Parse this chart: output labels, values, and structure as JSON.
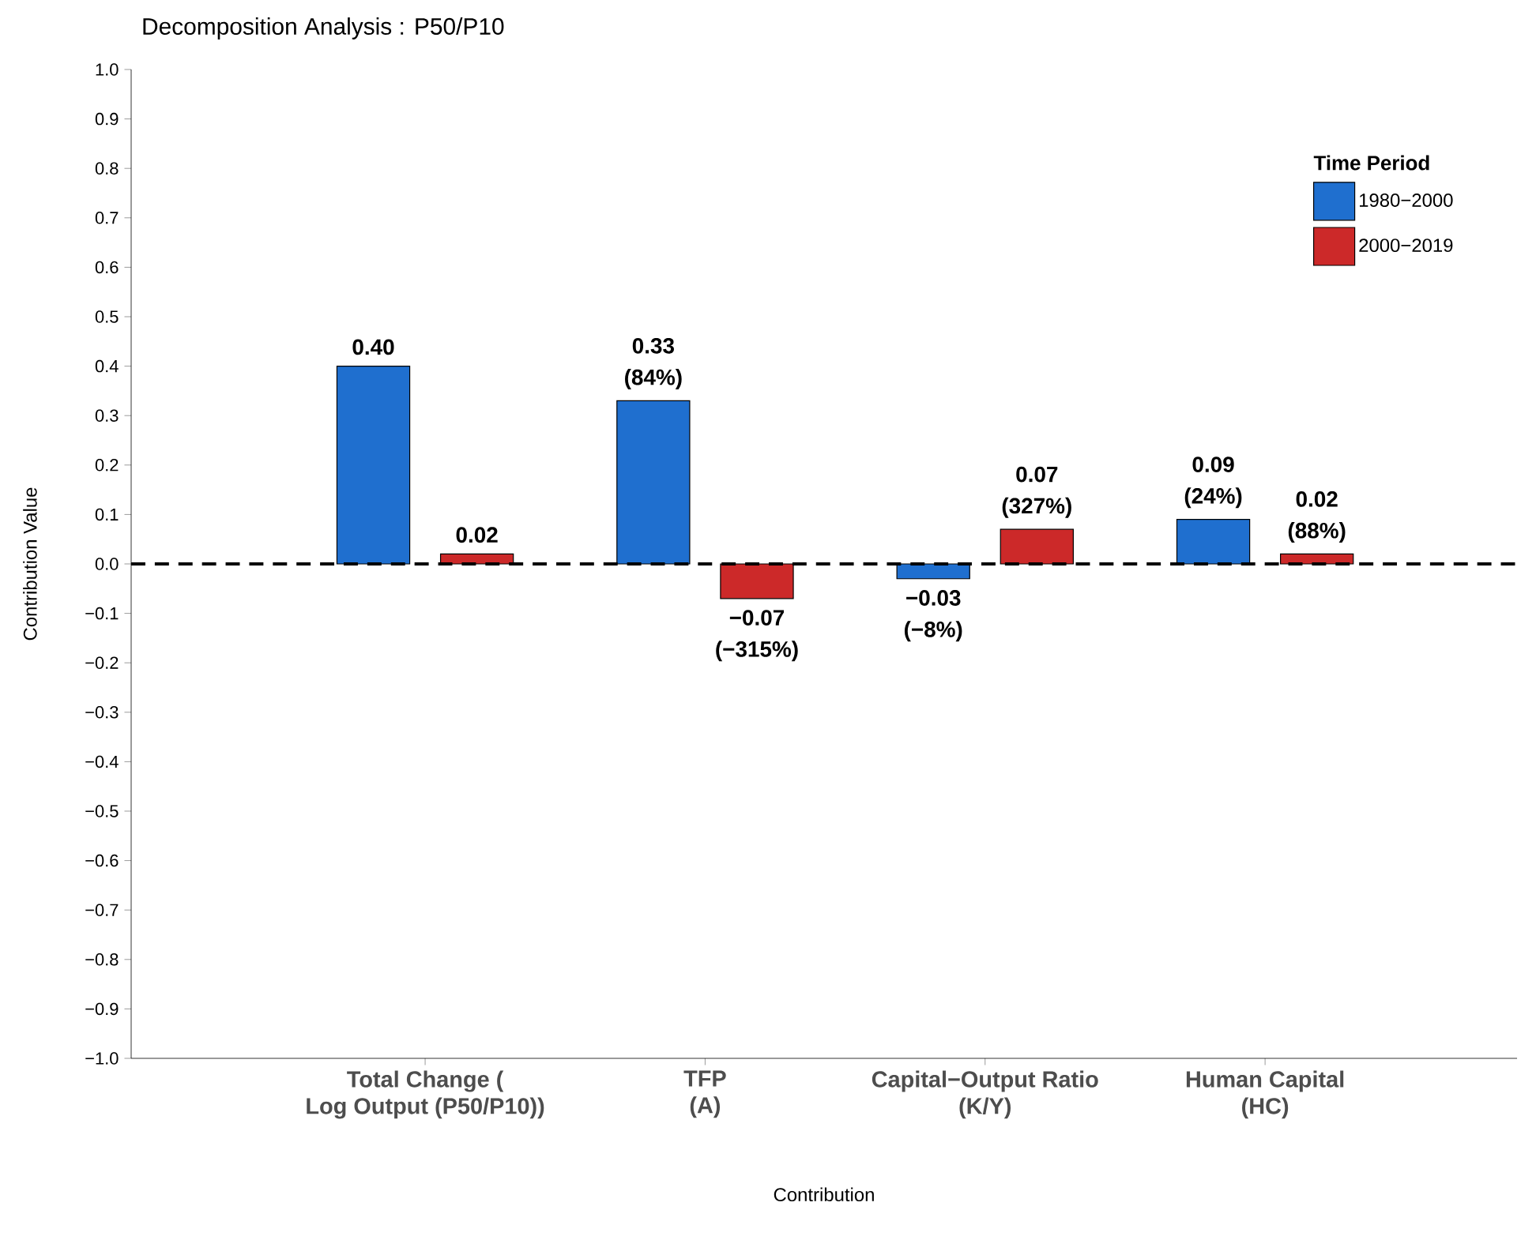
{
  "chart_data": {
    "type": "bar",
    "title": "Decomposition Analysis  : P50/P10",
    "xlabel": "Contribution",
    "ylabel": "Contribution Value",
    "legend_title": "Time Period",
    "categories": [
      "Total Change ( Log Output (P50/P10))",
      "TFP (A)",
      "Capital−Output Ratio (K/Y)",
      "Human Capital (HC)"
    ],
    "series": [
      {
        "name": "1980−2000",
        "color": "#1f6fcf",
        "values": [
          0.4,
          0.33,
          -0.03,
          0.09
        ],
        "value_labels": [
          "0.40",
          "0.33 (84%)",
          "−0.03 (−8%)",
          "0.09 (24%)"
        ]
      },
      {
        "name": "2000−2019",
        "color": "#cc2929",
        "values": [
          0.02,
          -0.07,
          0.07,
          0.02
        ],
        "value_labels": [
          "0.02",
          "−0.07 (−315%)",
          "0.07 (327%)",
          "0.02 (88%)"
        ]
      }
    ],
    "ylim": [
      -1,
      1
    ],
    "yticks": [
      {
        "value": -1,
        "label": "−1.0"
      },
      {
        "value": -0.9,
        "label": "−0.9"
      },
      {
        "value": -0.8,
        "label": "−0.8"
      },
      {
        "value": -0.7,
        "label": "−0.7"
      },
      {
        "value": -0.6,
        "label": "−0.6"
      },
      {
        "value": -0.5,
        "label": "−0.5"
      },
      {
        "value": -0.4,
        "label": "−0.4"
      },
      {
        "value": -0.3,
        "label": "−0.3"
      },
      {
        "value": -0.2,
        "label": "−0.2"
      },
      {
        "value": -0.1,
        "label": "−0.1"
      },
      {
        "value": 0,
        "label": "0.0"
      },
      {
        "value": 0.1,
        "label": "0.1"
      },
      {
        "value": 0.2,
        "label": "0.2"
      },
      {
        "value": 0.3,
        "label": "0.3"
      },
      {
        "value": 0.4,
        "label": "0.4"
      },
      {
        "value": 0.5,
        "label": "0.5"
      },
      {
        "value": 0.6,
        "label": "0.6"
      },
      {
        "value": 0.7,
        "label": "0.7"
      },
      {
        "value": 0.8,
        "label": "0.8"
      },
      {
        "value": 0.9,
        "label": "0.9"
      },
      {
        "value": 1,
        "label": "1.0"
      }
    ],
    "ref_lines": [
      {
        "axis": "y",
        "value": 0,
        "color": "#000000",
        "line_style": "dashed"
      }
    ],
    "grid": false,
    "legend": "top right"
  }
}
